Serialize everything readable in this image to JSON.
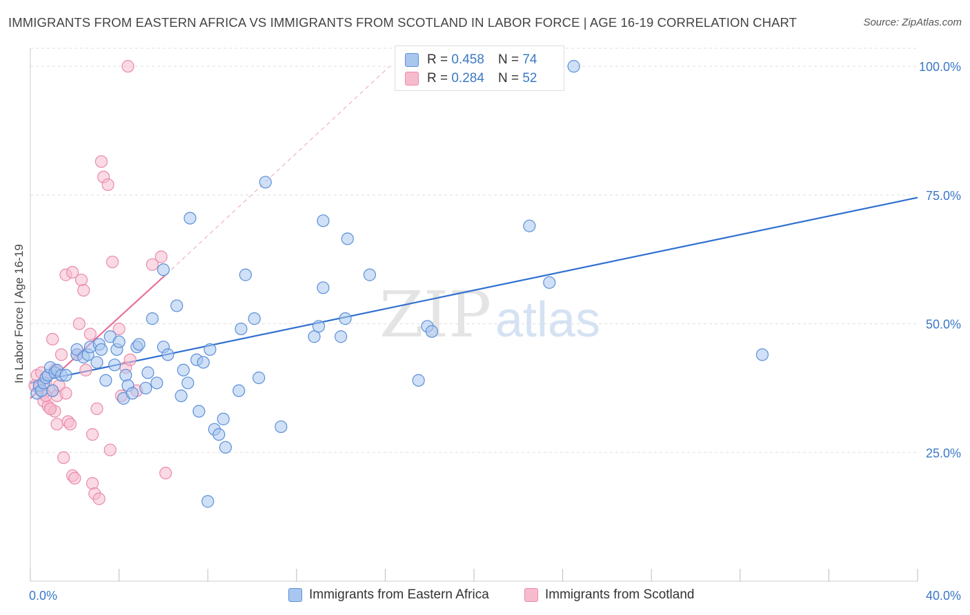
{
  "title": "IMMIGRANTS FROM EASTERN AFRICA VS IMMIGRANTS FROM SCOTLAND IN LABOR FORCE | AGE 16-19 CORRELATION CHART",
  "source": "Source: ZipAtlas.com",
  "watermark": {
    "zip": "ZIP",
    "atlas": "atlas"
  },
  "colors": {
    "blue_fill": "#a9c6ef",
    "blue_stroke": "#5a8fd8",
    "blue_line": "#2f6fcf",
    "pink_fill": "#f6bccd",
    "pink_stroke": "#ea8aa8",
    "pink_line": "#e8709a",
    "axis_text": "#3b78c6",
    "grid": "#dddddd"
  },
  "legend": {
    "r_label": "R =",
    "n_label": "N =",
    "series": [
      {
        "r": "0.458",
        "n": "74"
      },
      {
        "r": "0.284",
        "n": "52"
      }
    ]
  },
  "chart_data": {
    "type": "scatter",
    "title": "IMMIGRANTS FROM EASTERN AFRICA VS IMMIGRANTS FROM SCOTLAND IN LABOR FORCE | AGE 16-19 CORRELATION CHART",
    "xlabel": "",
    "ylabel": "In Labor Force | Age 16-19",
    "xlim": [
      0,
      40
    ],
    "ylim": [
      0,
      105
    ],
    "x_tick_labels": [
      "0.0%",
      "40.0%"
    ],
    "y_tick_labels": [
      "25.0%",
      "50.0%",
      "75.0%",
      "100.0%"
    ],
    "y_ticks": [
      25,
      50,
      75,
      100
    ],
    "grid": true,
    "legend_position": "top-center",
    "series": [
      {
        "name": "Immigrants from Eastern Africa",
        "points": [
          [
            0.3,
            36.5
          ],
          [
            0.4,
            38
          ],
          [
            0.5,
            37
          ],
          [
            0.6,
            38.5
          ],
          [
            0.7,
            39.5
          ],
          [
            0.8,
            40
          ],
          [
            0.9,
            41.5
          ],
          [
            1.0,
            37
          ],
          [
            1.1,
            40.5
          ],
          [
            1.2,
            41
          ],
          [
            1.4,
            40
          ],
          [
            1.6,
            40
          ],
          [
            2.1,
            44
          ],
          [
            2.1,
            45
          ],
          [
            2.4,
            43.5
          ],
          [
            2.6,
            44
          ],
          [
            2.7,
            45.5
          ],
          [
            3.0,
            42.5
          ],
          [
            3.1,
            46
          ],
          [
            3.2,
            45
          ],
          [
            3.4,
            39
          ],
          [
            3.6,
            47.5
          ],
          [
            3.8,
            42
          ],
          [
            3.9,
            45
          ],
          [
            4.0,
            46.5
          ],
          [
            4.2,
            35.5
          ],
          [
            4.3,
            40
          ],
          [
            4.4,
            38
          ],
          [
            4.6,
            36.5
          ],
          [
            4.8,
            45.5
          ],
          [
            4.9,
            46
          ],
          [
            5.2,
            37.5
          ],
          [
            5.3,
            40.5
          ],
          [
            5.5,
            51
          ],
          [
            5.7,
            38.5
          ],
          [
            6.0,
            45.5
          ],
          [
            6.0,
            60.5
          ],
          [
            6.2,
            44
          ],
          [
            6.6,
            53.5
          ],
          [
            6.8,
            36
          ],
          [
            6.9,
            41
          ],
          [
            7.1,
            38.5
          ],
          [
            7.2,
            70.5
          ],
          [
            7.5,
            43
          ],
          [
            7.6,
            33
          ],
          [
            7.8,
            42.5
          ],
          [
            8.0,
            15.5
          ],
          [
            8.1,
            45
          ],
          [
            8.3,
            29.5
          ],
          [
            8.5,
            28.5
          ],
          [
            8.7,
            31.5
          ],
          [
            8.8,
            26
          ],
          [
            9.4,
            37
          ],
          [
            9.5,
            49
          ],
          [
            9.7,
            59.5
          ],
          [
            10.1,
            51
          ],
          [
            10.3,
            39.5
          ],
          [
            10.6,
            77.5
          ],
          [
            11.3,
            30
          ],
          [
            12.8,
            47.5
          ],
          [
            13.0,
            49.5
          ],
          [
            13.2,
            70
          ],
          [
            13.2,
            57
          ],
          [
            14.0,
            47.5
          ],
          [
            14.2,
            51
          ],
          [
            14.3,
            66.5
          ],
          [
            15.3,
            59.5
          ],
          [
            17.5,
            39
          ],
          [
            17.9,
            49.5
          ],
          [
            18.1,
            48.5
          ],
          [
            22.5,
            69
          ],
          [
            23.4,
            58
          ],
          [
            24.5,
            100
          ],
          [
            33.0,
            44
          ]
        ]
      },
      {
        "name": "Immigrants from Scotland",
        "points": [
          [
            0.2,
            38
          ],
          [
            0.3,
            40
          ],
          [
            0.4,
            37.5
          ],
          [
            0.5,
            40.5
          ],
          [
            0.6,
            36.5
          ],
          [
            0.6,
            35
          ],
          [
            0.7,
            38.5
          ],
          [
            0.8,
            34
          ],
          [
            0.9,
            33.5
          ],
          [
            1.0,
            47
          ],
          [
            1.0,
            37
          ],
          [
            1.1,
            33
          ],
          [
            1.2,
            36
          ],
          [
            1.2,
            30.5
          ],
          [
            1.3,
            38
          ],
          [
            1.4,
            44
          ],
          [
            1.5,
            24
          ],
          [
            1.6,
            59.5
          ],
          [
            1.6,
            36.5
          ],
          [
            1.7,
            31
          ],
          [
            1.8,
            30.5
          ],
          [
            1.9,
            20.5
          ],
          [
            1.9,
            60
          ],
          [
            2.0,
            20
          ],
          [
            2.1,
            44
          ],
          [
            2.2,
            50
          ],
          [
            2.3,
            58.5
          ],
          [
            2.4,
            56.5
          ],
          [
            2.5,
            41
          ],
          [
            2.7,
            48
          ],
          [
            2.8,
            28.5
          ],
          [
            2.8,
            19
          ],
          [
            2.9,
            17
          ],
          [
            3.0,
            33.5
          ],
          [
            3.1,
            16
          ],
          [
            3.2,
            81.5
          ],
          [
            3.3,
            78.5
          ],
          [
            3.5,
            77
          ],
          [
            3.6,
            25.5
          ],
          [
            3.7,
            62
          ],
          [
            4.0,
            49
          ],
          [
            4.1,
            36
          ],
          [
            4.4,
            100
          ],
          [
            4.3,
            41.5
          ],
          [
            4.5,
            43
          ],
          [
            4.8,
            37
          ],
          [
            5.5,
            61.5
          ],
          [
            5.9,
            63
          ],
          [
            6.1,
            21
          ],
          [
            0.9,
            33.5
          ],
          [
            1.1,
            41
          ],
          [
            0.7,
            36
          ]
        ]
      }
    ],
    "trend_lines": [
      {
        "series": "Immigrants from Eastern Africa",
        "x": [
          0,
          40
        ],
        "y": [
          38.5,
          74.5
        ]
      },
      {
        "series": "Immigrants from Scotland",
        "x": [
          0,
          6.1
        ],
        "y": [
          35.5,
          59.5
        ],
        "dashed_extension_x": [
          6.1,
          16.2
        ],
        "dashed_extension_y": [
          59.5,
          100
        ]
      }
    ]
  },
  "bottom_legend": {
    "items": [
      {
        "label": "Immigrants from Eastern Africa"
      },
      {
        "label": "Immigrants from Scotland"
      }
    ]
  }
}
